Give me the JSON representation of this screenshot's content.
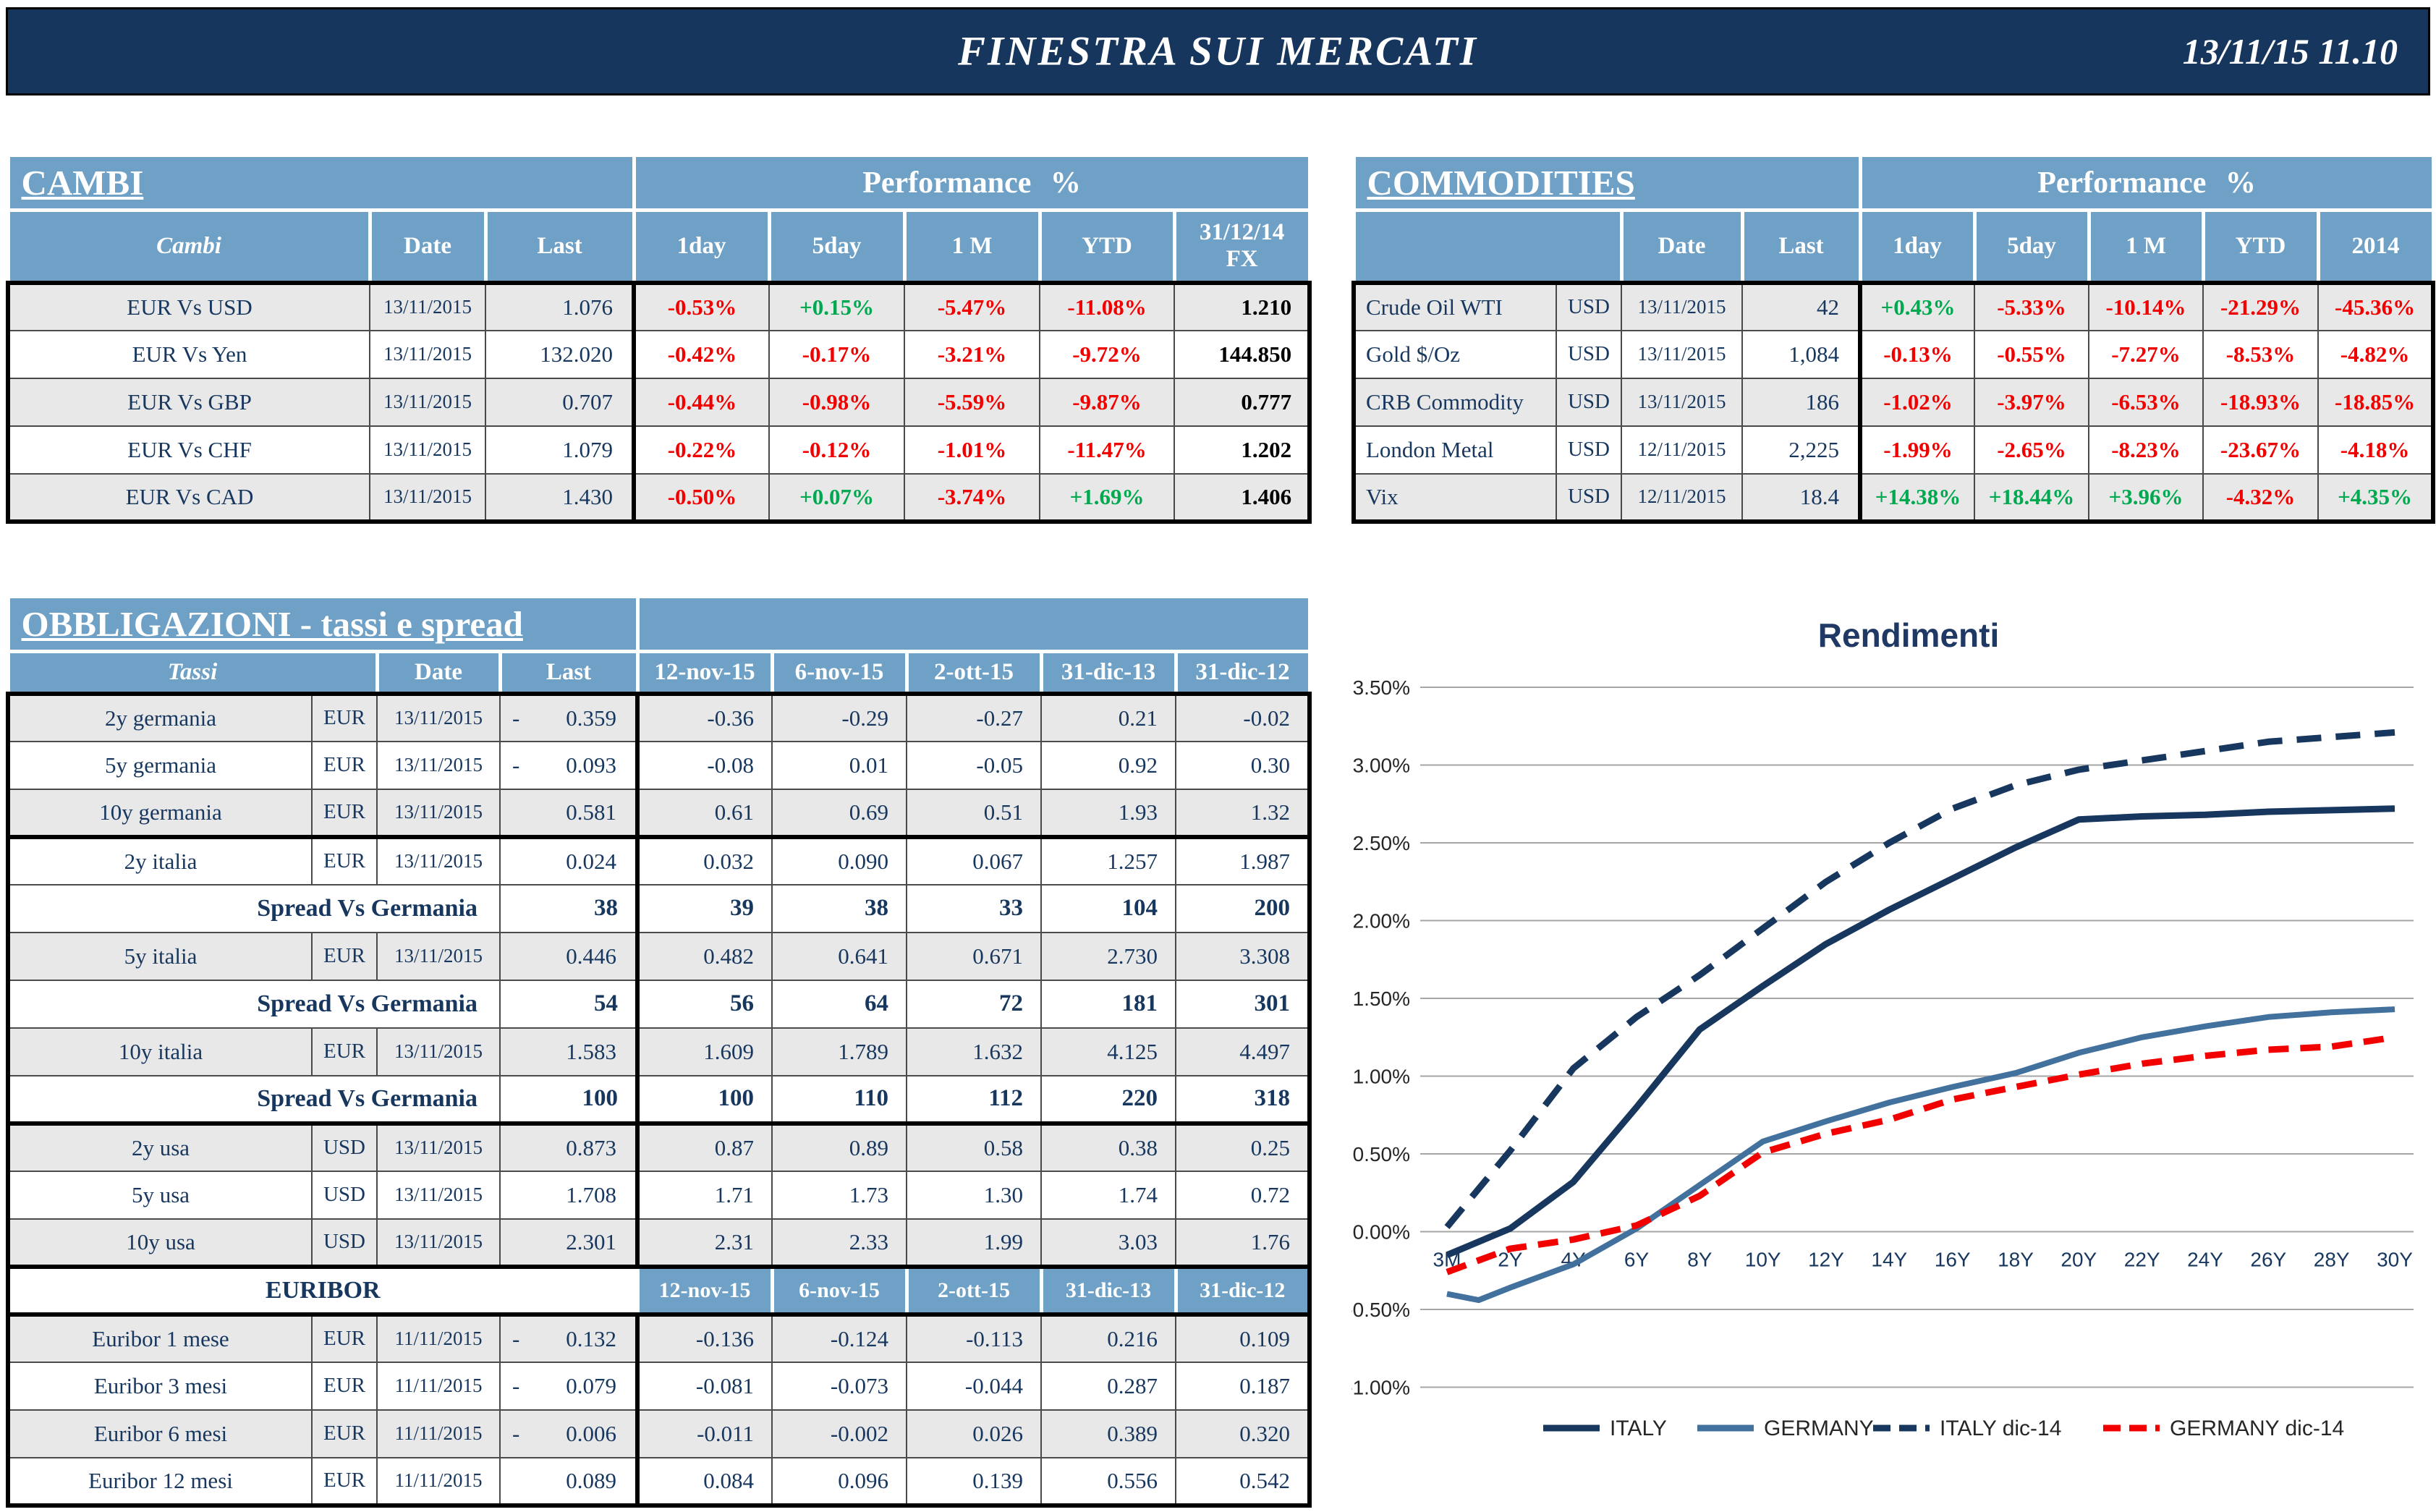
{
  "header": {
    "title": "FINESTRA SUI MERCATI",
    "datetime": "13/11/15 11.10"
  },
  "colors": {
    "navy": "#17365D",
    "header_blue": "#6FA0C6",
    "row_gray": "#E8E8E8",
    "text_navy": "#17375E",
    "neg_red": "#F20000",
    "pos_green": "#00A94F"
  },
  "cambi": {
    "title": "CAMBI",
    "perf_header": "Performance %",
    "cols": {
      "name": "Cambi",
      "date": "Date",
      "last": "Last",
      "p1": "1day",
      "p5": "5day",
      "p1m": "1 M",
      "ytd": "YTD",
      "fx": "31/12/14\nFX"
    },
    "rows": [
      {
        "name": "EUR Vs USD",
        "date": "13/11/2015",
        "last": "1.076",
        "p1": "-0.53%",
        "p5": "+0.15%",
        "p1m": "-5.47%",
        "ytd": "-11.08%",
        "fx": "1.210"
      },
      {
        "name": "EUR Vs Yen",
        "date": "13/11/2015",
        "last": "132.020",
        "p1": "-0.42%",
        "p5": "-0.17%",
        "p1m": "-3.21%",
        "ytd": "-9.72%",
        "fx": "144.850"
      },
      {
        "name": "EUR Vs GBP",
        "date": "13/11/2015",
        "last": "0.707",
        "p1": "-0.44%",
        "p5": "-0.98%",
        "p1m": "-5.59%",
        "ytd": "-9.87%",
        "fx": "0.777"
      },
      {
        "name": "EUR Vs CHF",
        "date": "13/11/2015",
        "last": "1.079",
        "p1": "-0.22%",
        "p5": "-0.12%",
        "p1m": "-1.01%",
        "ytd": "-11.47%",
        "fx": "1.202"
      },
      {
        "name": "EUR Vs CAD",
        "date": "13/11/2015",
        "last": "1.430",
        "p1": "-0.50%",
        "p5": "+0.07%",
        "p1m": "-3.74%",
        "ytd": "+1.69%",
        "fx": "1.406"
      }
    ]
  },
  "commodities": {
    "title": "COMMODITIES",
    "perf_header": "Performance %",
    "cols": {
      "date": "Date",
      "last": "Last",
      "p1": "1day",
      "p5": "5day",
      "p1m": "1 M",
      "ytd": "YTD",
      "y2014": "2014"
    },
    "rows": [
      {
        "name": "Crude Oil WTI",
        "cur": "USD",
        "date": "13/11/2015",
        "last": "42",
        "p1": "+0.43%",
        "p5": "-5.33%",
        "p1m": "-10.14%",
        "ytd": "-21.29%",
        "y2014": "-45.36%"
      },
      {
        "name": "Gold $/Oz",
        "cur": "USD",
        "date": "13/11/2015",
        "last": "1,084",
        "p1": "-0.13%",
        "p5": "-0.55%",
        "p1m": "-7.27%",
        "ytd": "-8.53%",
        "y2014": "-4.82%"
      },
      {
        "name": "CRB Commodity",
        "cur": "USD",
        "date": "13/11/2015",
        "last": "186",
        "p1": "-1.02%",
        "p5": "-3.97%",
        "p1m": "-6.53%",
        "ytd": "-18.93%",
        "y2014": "-18.85%"
      },
      {
        "name": "London Metal",
        "cur": "USD",
        "date": "12/11/2015",
        "last": "2,225",
        "p1": "-1.99%",
        "p5": "-2.65%",
        "p1m": "-8.23%",
        "ytd": "-23.67%",
        "y2014": "-4.18%"
      },
      {
        "name": "Vix",
        "cur": "USD",
        "date": "12/11/2015",
        "last": "18.4",
        "p1": "+14.38%",
        "p5": "+18.44%",
        "p1m": "+3.96%",
        "ytd": "-4.32%",
        "y2014": "+4.35%"
      }
    ]
  },
  "bonds": {
    "title": "OBBLIGAZIONI - tassi e spread",
    "cols": {
      "name": "Tassi",
      "date": "Date",
      "last": "Last"
    },
    "datecols": [
      "12-nov-15",
      "6-nov-15",
      "2-ott-15",
      "31-dic-13",
      "31-dic-12"
    ],
    "euribor_label": "EURIBOR",
    "spread_label": "Spread Vs Germania",
    "rows": [
      {
        "name": "2y germania",
        "cur": "EUR",
        "date": "13/11/2015",
        "sign": "-",
        "last": "0.359",
        "v": [
          "-0.36",
          "-0.29",
          "-0.27",
          "0.21",
          "-0.02"
        ]
      },
      {
        "name": "5y germania",
        "cur": "EUR",
        "date": "13/11/2015",
        "sign": "-",
        "last": "0.093",
        "v": [
          "-0.08",
          "0.01",
          "-0.05",
          "0.92",
          "0.30"
        ]
      },
      {
        "name": "10y germania",
        "cur": "EUR",
        "date": "13/11/2015",
        "sign": "",
        "last": "0.581",
        "v": [
          "0.61",
          "0.69",
          "0.51",
          "1.93",
          "1.32"
        ]
      },
      {
        "name": "2y italia",
        "cur": "EUR",
        "date": "13/11/2015",
        "sign": "",
        "last": "0.024",
        "v": [
          "0.032",
          "0.090",
          "0.067",
          "1.257",
          "1.987"
        ]
      },
      {
        "last": "38",
        "v": [
          "39",
          "38",
          "33",
          "104",
          "200"
        ]
      },
      {
        "name": "5y italia",
        "cur": "EUR",
        "date": "13/11/2015",
        "sign": "",
        "last": "0.446",
        "v": [
          "0.482",
          "0.641",
          "0.671",
          "2.730",
          "3.308"
        ]
      },
      {
        "last": "54",
        "v": [
          "56",
          "64",
          "72",
          "181",
          "301"
        ]
      },
      {
        "name": "10y italia",
        "cur": "EUR",
        "date": "13/11/2015",
        "sign": "",
        "last": "1.583",
        "v": [
          "1.609",
          "1.789",
          "1.632",
          "4.125",
          "4.497"
        ]
      },
      {
        "last": "100",
        "v": [
          "100",
          "110",
          "112",
          "220",
          "318"
        ]
      },
      {
        "name": "2y usa",
        "cur": "USD",
        "date": "13/11/2015",
        "sign": "",
        "last": "0.873",
        "v": [
          "0.87",
          "0.89",
          "0.58",
          "0.38",
          "0.25"
        ]
      },
      {
        "name": "5y usa",
        "cur": "USD",
        "date": "13/11/2015",
        "sign": "",
        "last": "1.708",
        "v": [
          "1.71",
          "1.73",
          "1.30",
          "1.74",
          "0.72"
        ]
      },
      {
        "name": "10y usa",
        "cur": "USD",
        "date": "13/11/2015",
        "sign": "",
        "last": "2.301",
        "v": [
          "2.31",
          "2.33",
          "1.99",
          "3.03",
          "1.76"
        ]
      },
      {
        "name": "Euribor 1 mese",
        "cur": "EUR",
        "date": "11/11/2015",
        "sign": "-",
        "last": "0.132",
        "v": [
          "-0.136",
          "-0.124",
          "-0.113",
          "0.216",
          "0.109"
        ]
      },
      {
        "name": "Euribor 3 mesi",
        "cur": "EUR",
        "date": "11/11/2015",
        "sign": "-",
        "last": "0.079",
        "v": [
          "-0.081",
          "-0.073",
          "-0.044",
          "0.287",
          "0.187"
        ]
      },
      {
        "name": "Euribor 6 mesi",
        "cur": "EUR",
        "date": "11/11/2015",
        "sign": "-",
        "last": "0.006",
        "v": [
          "-0.011",
          "-0.002",
          "0.026",
          "0.389",
          "0.320"
        ]
      },
      {
        "name": "Euribor 12 mesi",
        "cur": "EUR",
        "date": "11/11/2015",
        "sign": "",
        "last": "0.089",
        "v": [
          "0.084",
          "0.096",
          "0.139",
          "0.556",
          "0.542"
        ]
      }
    ]
  },
  "chart_data": {
    "type": "line",
    "title": "Rendimenti",
    "categories": [
      "3M",
      "2Y",
      "4Y",
      "6Y",
      "8Y",
      "10Y",
      "12Y",
      "14Y",
      "16Y",
      "18Y",
      "20Y",
      "22Y",
      "24Y",
      "26Y",
      "28Y",
      "30Y"
    ],
    "ylim": [
      -1.0,
      3.5
    ],
    "ytick_step": 0.5,
    "ytick_labels": [
      "3.50%",
      "3.00%",
      "2.50%",
      "2.00%",
      "1.50%",
      "1.00%",
      "0.50%",
      "0.00%",
      "-0.50%",
      "-1.00%"
    ],
    "grid": true,
    "legend_position": "bottom",
    "series": [
      {
        "name": "ITALY",
        "color": "#17375E",
        "width": 9,
        "dash": "",
        "points": [
          [
            0,
            -0.15
          ],
          [
            1,
            0.02
          ],
          [
            2,
            0.32
          ],
          [
            3,
            0.8
          ],
          [
            4,
            1.3
          ],
          [
            5,
            1.58
          ],
          [
            6,
            1.85
          ],
          [
            7,
            2.07
          ],
          [
            8,
            2.27
          ],
          [
            9,
            2.47
          ],
          [
            10,
            2.65
          ],
          [
            11,
            2.67
          ],
          [
            12,
            2.68
          ],
          [
            13,
            2.7
          ],
          [
            14,
            2.71
          ],
          [
            15,
            2.72
          ]
        ]
      },
      {
        "name": "GERMANY",
        "color": "#41719C",
        "width": 8,
        "dash": "",
        "points": [
          [
            0,
            -0.4
          ],
          [
            0.5,
            -0.44
          ],
          [
            1,
            -0.36
          ],
          [
            2,
            -0.21
          ],
          [
            3,
            0.02
          ],
          [
            4,
            0.3
          ],
          [
            5,
            0.58
          ],
          [
            6,
            0.71
          ],
          [
            7,
            0.83
          ],
          [
            8,
            0.93
          ],
          [
            9,
            1.02
          ],
          [
            10,
            1.15
          ],
          [
            11,
            1.25
          ],
          [
            12,
            1.32
          ],
          [
            13,
            1.38
          ],
          [
            14,
            1.41
          ],
          [
            15,
            1.43
          ]
        ]
      },
      {
        "name": "ITALY dic-14",
        "color": "#17375E",
        "width": 9,
        "dash": "34 20",
        "points": [
          [
            0,
            0.03
          ],
          [
            1,
            0.52
          ],
          [
            2,
            1.05
          ],
          [
            3,
            1.38
          ],
          [
            4,
            1.65
          ],
          [
            5,
            1.95
          ],
          [
            6,
            2.25
          ],
          [
            7,
            2.5
          ],
          [
            8,
            2.72
          ],
          [
            9,
            2.87
          ],
          [
            10,
            2.97
          ],
          [
            11,
            3.03
          ],
          [
            12,
            3.09
          ],
          [
            13,
            3.15
          ],
          [
            14,
            3.18
          ],
          [
            15,
            3.21
          ]
        ]
      },
      {
        "name": "GERMANY dic-14",
        "color": "#F20000",
        "width": 9,
        "dash": "28 16",
        "points": [
          [
            0,
            -0.26
          ],
          [
            1,
            -0.11
          ],
          [
            2,
            -0.05
          ],
          [
            3,
            0.04
          ],
          [
            4,
            0.23
          ],
          [
            5,
            0.51
          ],
          [
            6,
            0.63
          ],
          [
            7,
            0.72
          ],
          [
            8,
            0.85
          ],
          [
            9,
            0.93
          ],
          [
            10,
            1.01
          ],
          [
            11,
            1.08
          ],
          [
            12,
            1.13
          ],
          [
            13,
            1.17
          ],
          [
            14,
            1.19
          ],
          [
            15,
            1.25
          ]
        ]
      }
    ]
  }
}
